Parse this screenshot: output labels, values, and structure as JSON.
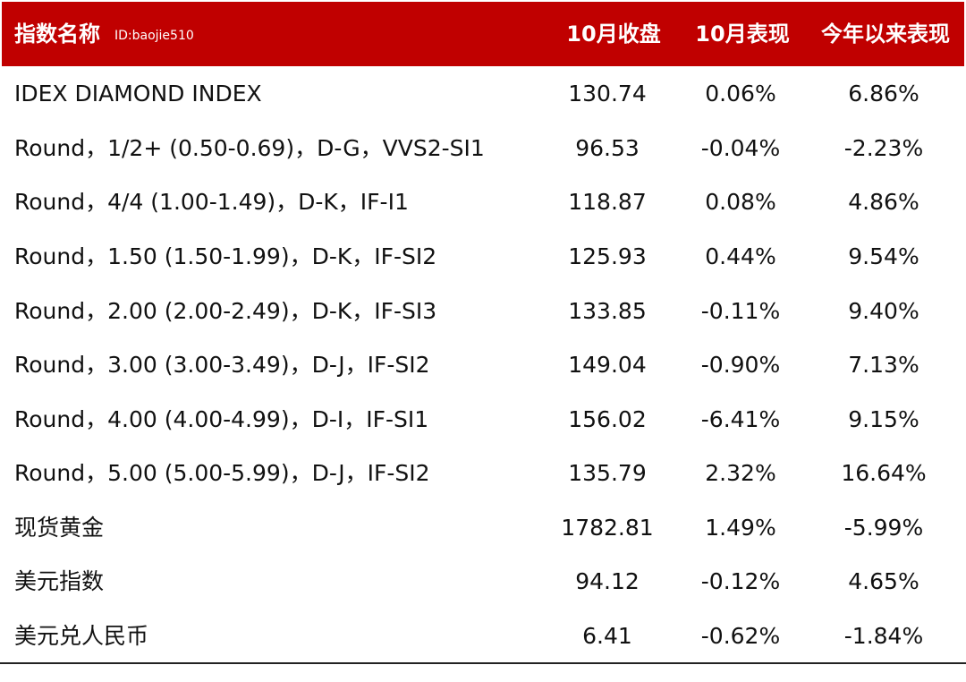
{
  "header": {
    "name_label": "指数名称",
    "watermark": "ID:baojie510",
    "close_label": "10月收盘",
    "month_label": "10月表现",
    "ytd_label": "今年以来表现"
  },
  "rows": [
    {
      "name": "IDEX DIAMOND INDEX",
      "close": "130.74",
      "month": "0.06%",
      "ytd": "6.86%"
    },
    {
      "name": "Round，1/2+ (0.50-0.69)，D-G，VVS2-SI1",
      "close": "96.53",
      "month": "-0.04%",
      "ytd": "-2.23%"
    },
    {
      "name": "Round，4/4 (1.00-1.49)，D-K，IF-I1",
      "close": "118.87",
      "month": "0.08%",
      "ytd": "4.86%"
    },
    {
      "name": "Round，1.50 (1.50-1.99)，D-K，IF-SI2",
      "close": "125.93",
      "month": "0.44%",
      "ytd": "9.54%"
    },
    {
      "name": "Round，2.00 (2.00-2.49)，D-K，IF-SI3",
      "close": "133.85",
      "month": "-0.11%",
      "ytd": "9.40%"
    },
    {
      "name": "Round，3.00 (3.00-3.49)，D-J，IF-SI2",
      "close": "149.04",
      "month": "-0.90%",
      "ytd": "7.13%"
    },
    {
      "name": "Round，4.00 (4.00-4.99)，D-I，IF-SI1",
      "close": "156.02",
      "month": "-6.41%",
      "ytd": "9.15%"
    },
    {
      "name": "Round，5.00 (5.00-5.99)，D-J，IF-SI2",
      "close": "135.79",
      "month": "2.32%",
      "ytd": "16.64%"
    },
    {
      "name": "现货黄金",
      "close": "1782.81",
      "month": "1.49%",
      "ytd": "-5.99%"
    },
    {
      "name": "美元指数",
      "close": "94.12",
      "month": "-0.12%",
      "ytd": "4.65%"
    },
    {
      "name": "美元兑人民币",
      "close": "6.41",
      "month": "-0.62%",
      "ytd": "-1.84%"
    }
  ],
  "colors": {
    "header_bg": "#c00000",
    "header_text": "#ffffff",
    "body_text": "#111111"
  }
}
